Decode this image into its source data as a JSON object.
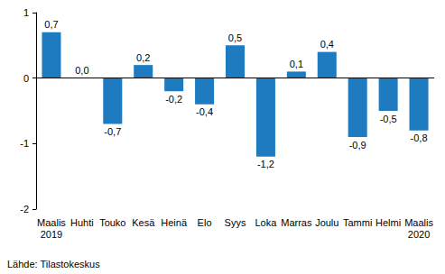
{
  "chart_data": {
    "type": "bar",
    "categories": [
      "Maalis\n2019",
      "Huhti",
      "Touko",
      "Kesä",
      "Heinä",
      "Elo",
      "Syys",
      "Loka",
      "Marras",
      "Joulu",
      "Tammi",
      "Helmi",
      "Maalis\n2020"
    ],
    "values": [
      0.7,
      0.0,
      -0.7,
      0.2,
      -0.2,
      -0.4,
      0.5,
      -1.2,
      0.1,
      0.4,
      -0.9,
      -0.5,
      -0.8
    ],
    "value_labels": [
      "0,7",
      "0,0",
      "-0,7",
      "0,2",
      "-0,2",
      "-0,4",
      "0,5",
      "-1,2",
      "0,1",
      "0,4",
      "-0,9",
      "-0,5",
      "-0,8"
    ],
    "data_labels": true,
    "color": "#1f7bbf",
    "ylim": [
      -2,
      1
    ],
    "yticks": [
      -2,
      -1,
      0,
      1
    ],
    "grid": false,
    "annotations": [
      "Lähde: Tilastokeskus"
    ]
  }
}
